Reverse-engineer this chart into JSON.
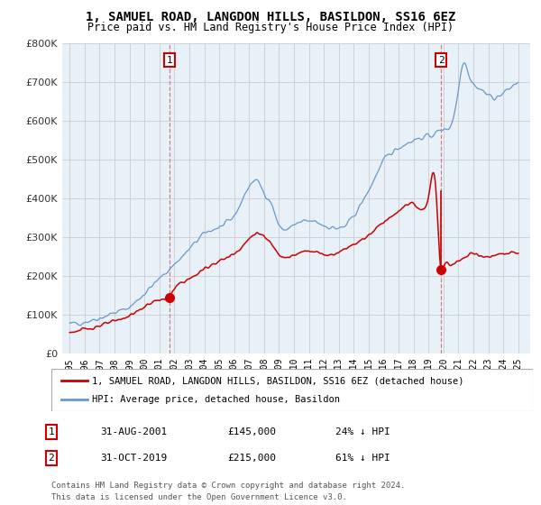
{
  "title": "1, SAMUEL ROAD, LANGDON HILLS, BASILDON, SS16 6EZ",
  "subtitle": "Price paid vs. HM Land Registry's House Price Index (HPI)",
  "red_label": "1, SAMUEL ROAD, LANGDON HILLS, BASILDON, SS16 6EZ (detached house)",
  "blue_label": "HPI: Average price, detached house, Basildon",
  "transaction1": {
    "date": "31-AUG-2001",
    "price": 145000,
    "pct": "24% ↓ HPI",
    "year": 2001.67
  },
  "transaction2": {
    "date": "31-OCT-2019",
    "price": 215000,
    "pct": "61% ↓ HPI",
    "year": 2019.83
  },
  "footnote1": "Contains HM Land Registry data © Crown copyright and database right 2024.",
  "footnote2": "This data is licensed under the Open Government Licence v3.0.",
  "ylim": [
    0,
    800000
  ],
  "yticks": [
    0,
    100000,
    200000,
    300000,
    400000,
    500000,
    600000,
    700000,
    800000
  ],
  "background": "#ffffff",
  "plot_bg": "#e8f0f8",
  "grid_color": "#cccccc",
  "red_color": "#cc0000",
  "blue_color": "#6699cc",
  "title_fontsize": 10,
  "subtitle_fontsize": 8.5
}
